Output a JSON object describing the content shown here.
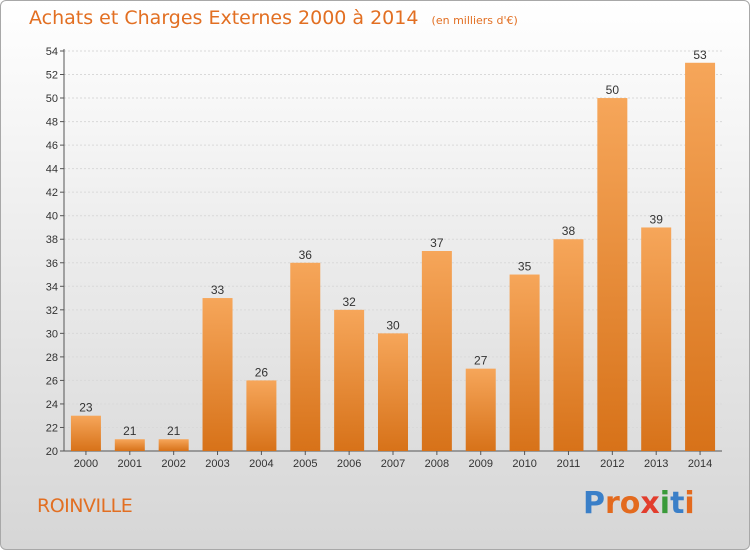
{
  "header": {
    "title": "Achats et Charges Externes 2000 à 2014",
    "unit": "(en milliers d'€)"
  },
  "footer": {
    "commune": "ROINVILLE",
    "logo": "Proxiti"
  },
  "colors": {
    "accent": "#e26f22",
    "bar_light": "#f6a65a",
    "bar_dark": "#d77219",
    "logo_letters": [
      "#3a7fc8",
      "#e36a1e",
      "#e36a1e",
      "#e23d2d",
      "#3a9a3a",
      "#3a7fc8",
      "#e36a1e"
    ]
  },
  "chart_data": {
    "type": "bar",
    "title": "Achats et Charges Externes 2000 à 2014",
    "subtitle": "(en milliers d'€)",
    "categories": [
      "2000",
      "2001",
      "2002",
      "2003",
      "2004",
      "2005",
      "2006",
      "2007",
      "2008",
      "2009",
      "2010",
      "2011",
      "2012",
      "2013",
      "2014"
    ],
    "values": [
      23,
      21,
      21,
      33,
      26,
      36,
      32,
      30,
      37,
      27,
      35,
      38,
      50,
      39,
      53
    ],
    "ylim": [
      20,
      54
    ],
    "yticks": [
      20,
      22,
      24,
      26,
      28,
      30,
      32,
      34,
      36,
      38,
      40,
      42,
      44,
      46,
      48,
      50,
      52,
      54
    ],
    "grid": true,
    "xlabel": "",
    "ylabel": ""
  }
}
